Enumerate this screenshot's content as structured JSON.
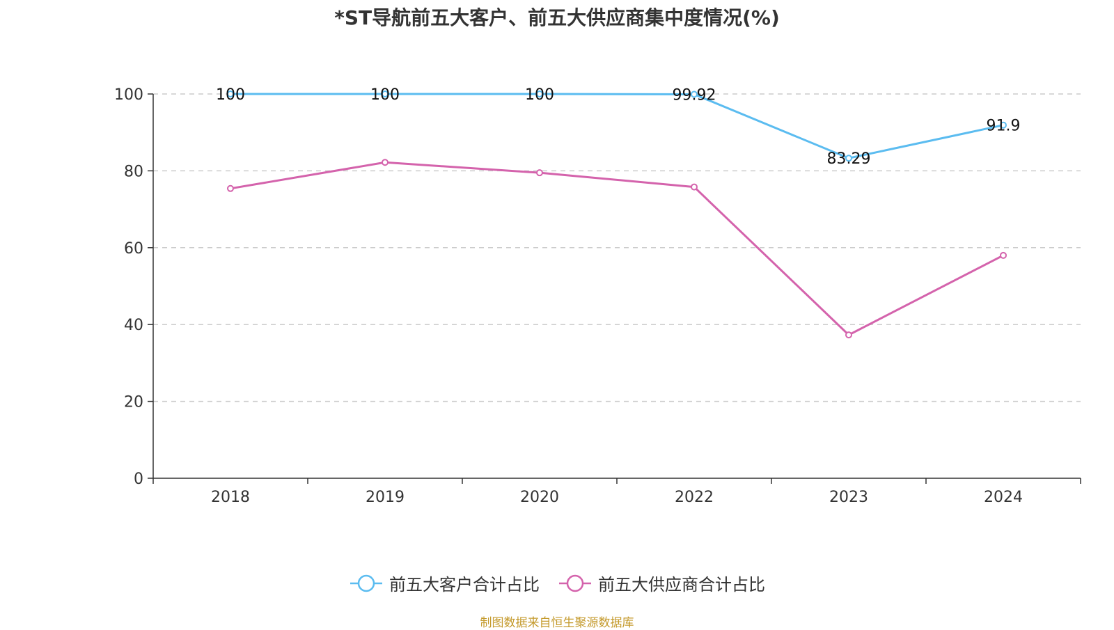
{
  "chart_data": {
    "type": "line",
    "title": "*ST导航前五大客户、前五大供应商集中度情况(%)",
    "categories": [
      "2018",
      "2019",
      "2020",
      "2022",
      "2023",
      "2024"
    ],
    "series": [
      {
        "name": "前五大客户合计占比",
        "color": "#5bbcf0",
        "values": [
          100,
          100,
          100,
          99.92,
          83.29,
          91.9
        ],
        "labels": [
          "100",
          "100",
          "100",
          "99.92",
          "83.29",
          "91.9"
        ],
        "show_labels": true
      },
      {
        "name": "前五大供应商合计占比",
        "color": "#d463ac",
        "values": [
          75.4,
          82.2,
          79.5,
          75.8,
          37.3,
          58.0
        ],
        "show_labels": false
      }
    ],
    "y_ticks": [
      "0",
      "20",
      "40",
      "60",
      "80",
      "100"
    ],
    "ylim": [
      0,
      100
    ],
    "grid": true,
    "legend_position": "bottom"
  },
  "footer": {
    "source": "制图数据来自恒生聚源数据库"
  }
}
